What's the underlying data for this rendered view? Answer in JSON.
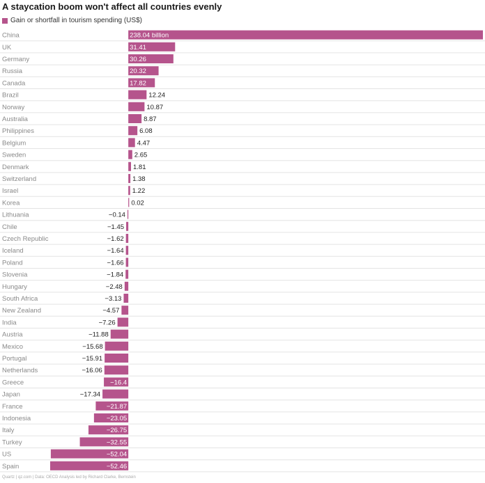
{
  "colors": {
    "bar": "#b5548c",
    "grid": "#e4e4e4",
    "inside_text": "#ffffff",
    "outside_text": "#222222"
  },
  "chart_data": {
    "type": "bar",
    "orientation": "horizontal",
    "title": "A staycation boom won't affect all countries evenly",
    "legend": "Gain or shortfall in tourism spending (US$)",
    "footer": "Quartz | qz.com | Data: OECD Analysis led by Richard Clarke, Bernstein",
    "categories": [
      "China",
      "UK",
      "Germany",
      "Russia",
      "Canada",
      "Brazil",
      "Norway",
      "Australia",
      "Philippines",
      "Belgium",
      "Sweden",
      "Denmark",
      "Switzerland",
      "Israel",
      "Korea",
      "Lithuania",
      "Chile",
      "Czech Republic",
      "Iceland",
      "Poland",
      "Slovenia",
      "Hungary",
      "South Africa",
      "New Zealand",
      "India",
      "Austria",
      "Mexico",
      "Portugal",
      "Netherlands",
      "Greece",
      "Japan",
      "France",
      "Indonesia",
      "Italy",
      "Turkey",
      "US",
      "Spain"
    ],
    "values": [
      238.04,
      31.41,
      30.26,
      20.32,
      17.82,
      12.24,
      10.87,
      8.87,
      6.08,
      4.47,
      2.65,
      1.81,
      1.38,
      1.22,
      0.02,
      -0.14,
      -1.45,
      -1.62,
      -1.64,
      -1.66,
      -1.84,
      -2.48,
      -3.13,
      -4.57,
      -7.26,
      -11.88,
      -15.68,
      -15.91,
      -16.06,
      -16.4,
      -17.34,
      -21.87,
      -23.05,
      -26.75,
      -32.55,
      -52.04,
      -52.46
    ],
    "value_labels": [
      "238.04 billion",
      "31.41",
      "30.26",
      "20.32",
      "17.82",
      "12.24",
      "10.87",
      "8.87",
      "6.08",
      "4.47",
      "2.65",
      "1.81",
      "1.38",
      "1.22",
      "0.02",
      "−0.14",
      "−1.45",
      "−1.62",
      "−1.64",
      "−1.66",
      "−1.84",
      "−2.48",
      "−3.13",
      "−4.57",
      "−7.26",
      "−11.88",
      "−15.68",
      "−15.91",
      "−16.06",
      "−16.4",
      "−17.34",
      "−21.87",
      "−23.05",
      "−26.75",
      "−32.55",
      "−52.04",
      "−52.46"
    ],
    "xlim": [
      -52.46,
      238.04
    ]
  }
}
